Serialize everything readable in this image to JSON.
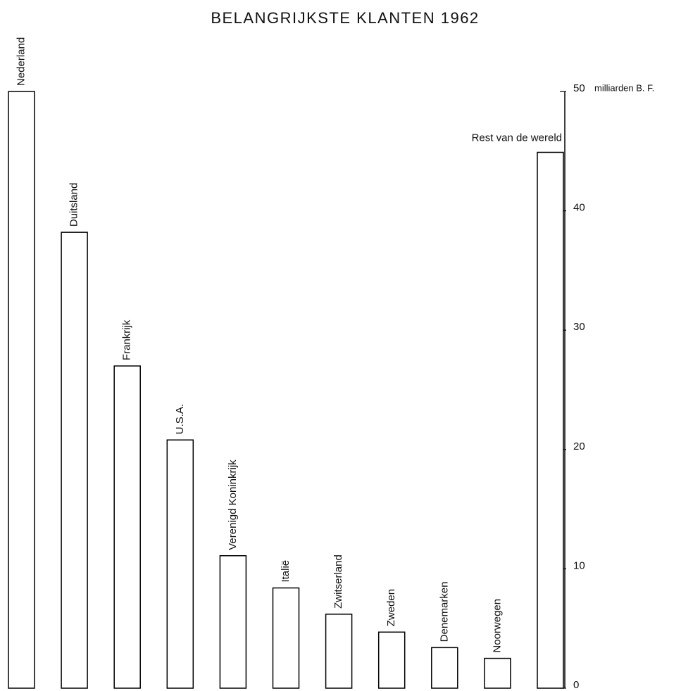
{
  "chart_data": {
    "type": "bar",
    "title": "BELANGRIJKSTE KLANTEN 1962",
    "y_label": "milliarden B. F.",
    "categories": [
      "Nederland",
      "Duitsland",
      "Frankrijk",
      "U.S.A.",
      "Verenigd Koninkrijk",
      "Italië",
      "Zwitserland",
      "Zweden",
      "Denemarken",
      "Noorwegen",
      "Rest van de wereld"
    ],
    "values": [
      50.0,
      38.2,
      27.0,
      20.8,
      11.1,
      8.4,
      6.2,
      4.7,
      3.4,
      2.5,
      44.9
    ],
    "color": "#000000",
    "ylim": [
      0,
      50
    ],
    "yticks": [
      0,
      10,
      20,
      30,
      40,
      50
    ],
    "grid": false
  }
}
